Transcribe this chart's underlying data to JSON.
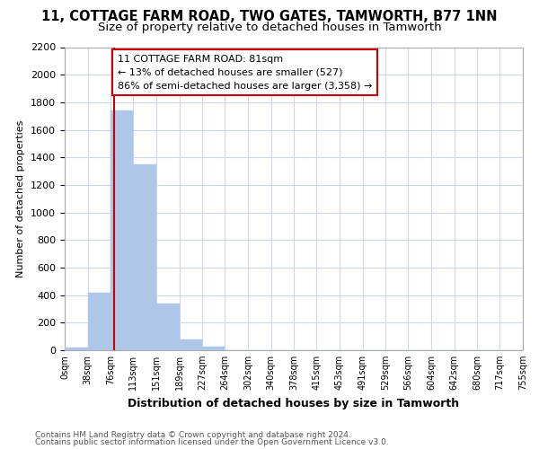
{
  "title": "11, COTTAGE FARM ROAD, TWO GATES, TAMWORTH, B77 1NN",
  "subtitle": "Size of property relative to detached houses in Tamworth",
  "xlabel": "Distribution of detached houses by size in Tamworth",
  "ylabel": "Number of detached properties",
  "bar_edges": [
    0,
    38,
    76,
    113,
    151,
    189,
    227,
    264,
    302,
    340,
    378,
    415,
    453,
    491,
    529,
    566,
    604,
    642,
    680,
    717,
    755
  ],
  "bar_heights": [
    20,
    415,
    1740,
    1350,
    340,
    75,
    25,
    0,
    0,
    0,
    0,
    0,
    0,
    0,
    0,
    0,
    0,
    0,
    0,
    0
  ],
  "bar_color": "#aec6e8",
  "grid_color": "#cdd8ea",
  "vline_x": 81,
  "vline_color": "#cc0000",
  "annotation_text": "11 COTTAGE FARM ROAD: 81sqm\n← 13% of detached houses are smaller (527)\n86% of semi-detached houses are larger (3,358) →",
  "annotation_box_color": "#ffffff",
  "annotation_box_edge": "#cc0000",
  "ylim": [
    0,
    2200
  ],
  "yticks": [
    0,
    200,
    400,
    600,
    800,
    1000,
    1200,
    1400,
    1600,
    1800,
    2000,
    2200
  ],
  "xtick_labels": [
    "0sqm",
    "38sqm",
    "76sqm",
    "113sqm",
    "151sqm",
    "189sqm",
    "227sqm",
    "264sqm",
    "302sqm",
    "340sqm",
    "378sqm",
    "415sqm",
    "453sqm",
    "491sqm",
    "529sqm",
    "566sqm",
    "604sqm",
    "642sqm",
    "680sqm",
    "717sqm",
    "755sqm"
  ],
  "footer_line1": "Contains HM Land Registry data © Crown copyright and database right 2024.",
  "footer_line2": "Contains public sector information licensed under the Open Government Licence v3.0.",
  "title_fontsize": 10.5,
  "subtitle_fontsize": 9.5,
  "bg_color": "#ffffff"
}
